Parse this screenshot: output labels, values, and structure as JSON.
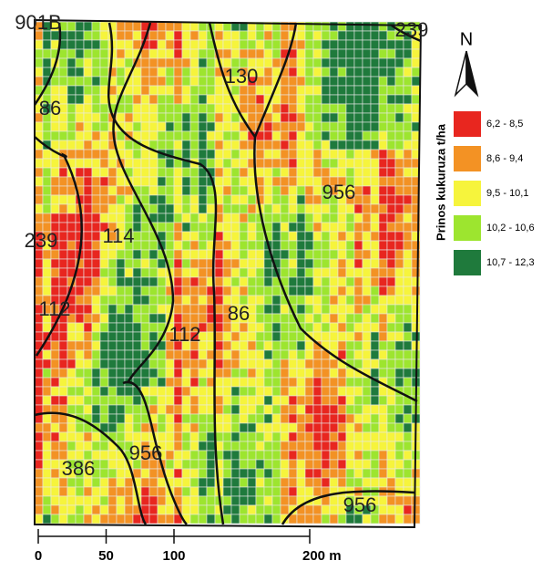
{
  "map": {
    "north": "N",
    "legend": {
      "title": "Prinos kukuruza t/ha",
      "items": [
        {
          "label": "6,2 - 8,5",
          "color": "#e8261f"
        },
        {
          "label": "8,6 - 9,4",
          "color": "#f39224"
        },
        {
          "label": "9,5 - 10,1",
          "color": "#f6f43c"
        },
        {
          "label": "10,2 - 10,6",
          "color": "#9de52f"
        },
        {
          "label": "10,7 - 12,3",
          "color": "#1f7a3c"
        }
      ]
    },
    "zone_labels": [
      "901B",
      "239",
      "86",
      "130",
      "956",
      "239",
      "114",
      "112",
      "112",
      "86",
      "386",
      "956",
      "956"
    ],
    "scale_bar": {
      "ticks": [
        0,
        50,
        100,
        {
          "value": 200,
          "label": "200 m"
        }
      ],
      "range": [
        0,
        200
      ]
    }
  }
}
